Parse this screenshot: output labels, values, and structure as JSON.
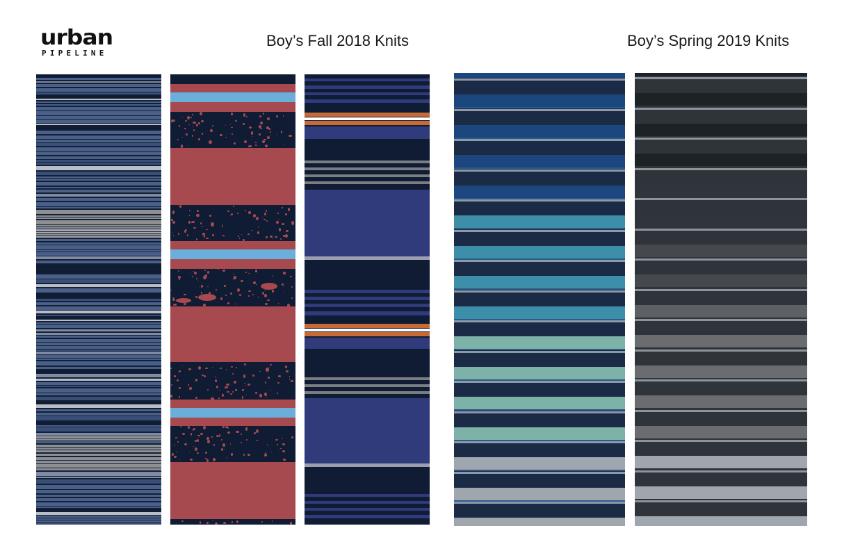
{
  "brand": {
    "logo_word": "urban",
    "logo_sub": "PIPELINE"
  },
  "headings": {
    "fall": "Boy’s Fall 2018 Knits",
    "spring": "Boy’s Spring 2019 Knits"
  },
  "colors": {
    "navy": "#0f1c33",
    "denim_blue": "#4a6089",
    "heather_grey": "#9a9b9e",
    "brick_red": "#a64a4f",
    "sky_blue": "#6aaedc",
    "royal_blue": "#2f3b7a",
    "orange": "#c96a35",
    "teal": "#3f8fa9",
    "seafoam": "#7fb3a8",
    "charcoal": "#2f343a",
    "light_grey": "#a0a6ad"
  },
  "swatches": [
    {
      "id": "fall-1",
      "group": "fall",
      "pattern": "variegated pinstripe"
    },
    {
      "id": "fall-2",
      "group": "fall",
      "pattern": "speckled block stripe"
    },
    {
      "id": "fall-3",
      "group": "fall",
      "pattern": "engineered block stripe"
    },
    {
      "id": "spring-1",
      "group": "spring",
      "pattern": "gradient rugby stripe"
    },
    {
      "id": "spring-2",
      "group": "spring",
      "pattern": "tonal grey stripe"
    }
  ]
}
